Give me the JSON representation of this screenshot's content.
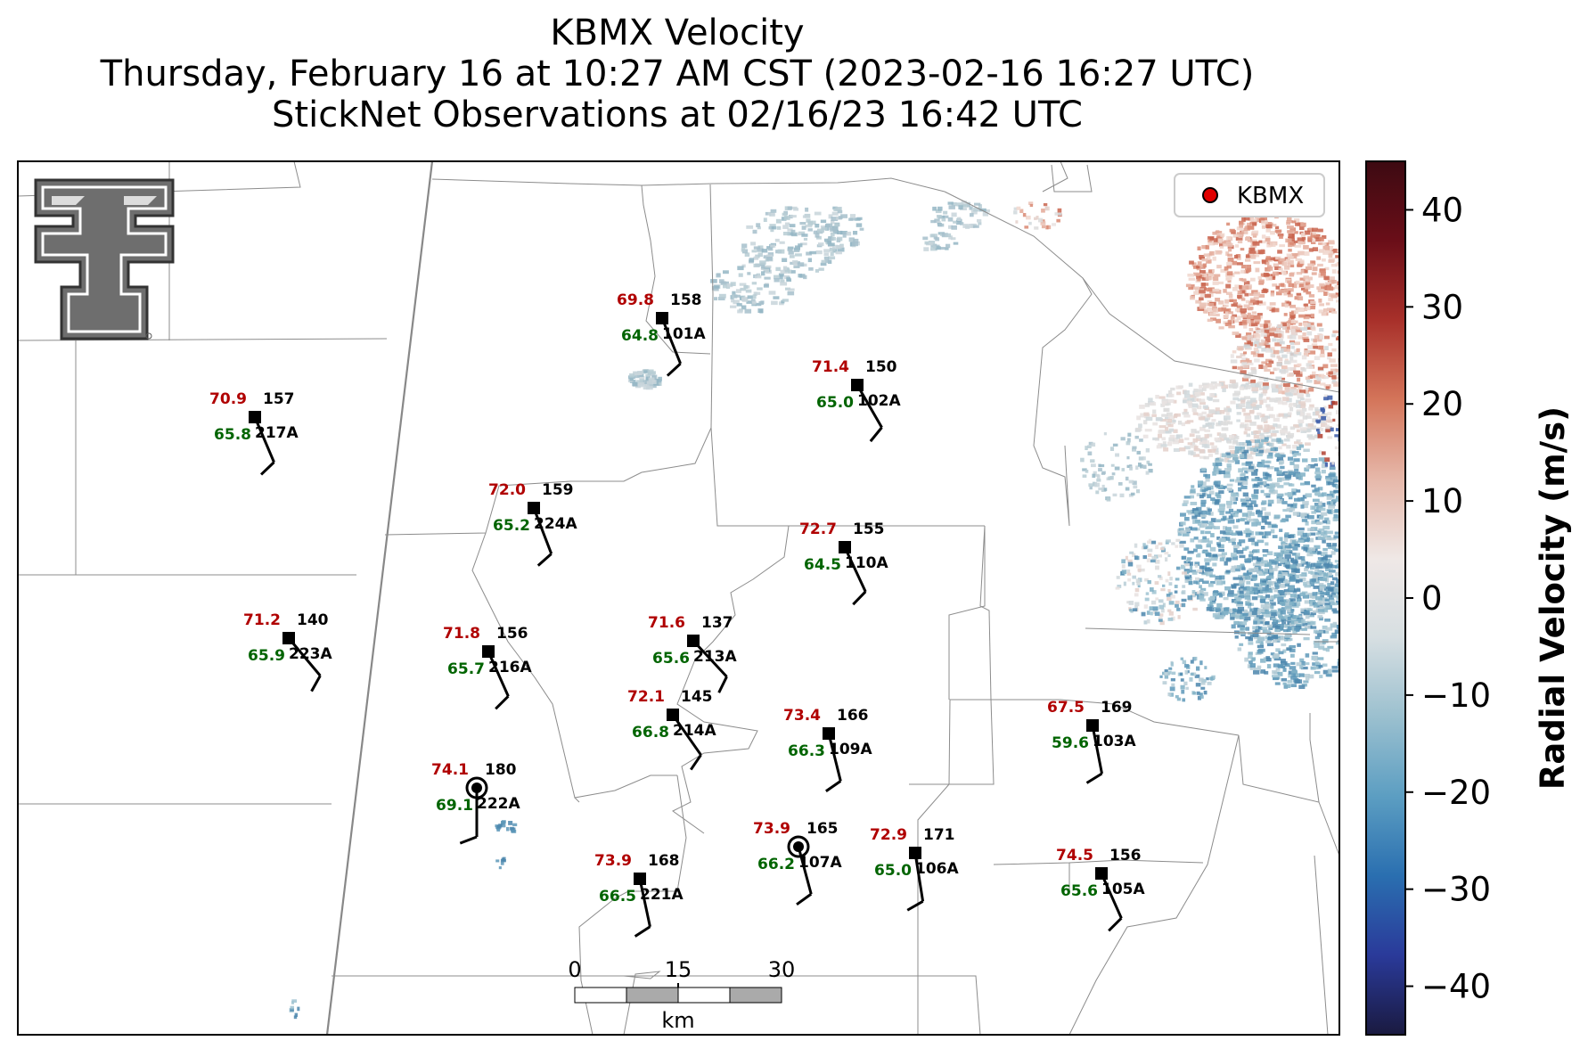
{
  "title": {
    "line1": "KBMX Velocity",
    "line2": "Thursday, February 16 at 10:27 AM CST (2023-02-16 16:27 UTC)",
    "line3": "StickNet Observations at 02/16/23 16:42 UTC"
  },
  "legend": {
    "label": "KBMX",
    "marker_color": "#e00000"
  },
  "colorbar": {
    "label": "Radial Velocity (m/s)",
    "min": -45,
    "max": 45,
    "ticks": [
      "40",
      "30",
      "20",
      "10",
      "0",
      "−10",
      "−20",
      "−30",
      "−40"
    ],
    "tick_values": [
      40,
      30,
      20,
      10,
      0,
      -10,
      -20,
      -30,
      -40
    ],
    "colors": [
      "#1a1a40",
      "#2a3a9a",
      "#2a6fb0",
      "#5c9ec2",
      "#9bc0cf",
      "#d7dfe2",
      "#efe8e6",
      "#e6b8aa",
      "#d4755a",
      "#a8302a",
      "#6a0e18",
      "#3d0a12"
    ]
  },
  "scale_bar": {
    "ticks": [
      "0",
      "15",
      "30"
    ],
    "unit": "km"
  },
  "logo": {
    "name": "texas-tech-double-t-logo"
  },
  "stations": [
    {
      "id": "101A",
      "temp": "69.8",
      "dew": "64.8",
      "dir": "158",
      "marker": "square"
    },
    {
      "id": "102A",
      "temp": "71.4",
      "dew": "65.0",
      "dir": "150",
      "marker": "square"
    },
    {
      "id": "217A",
      "temp": "70.9",
      "dew": "65.8",
      "dir": "157",
      "marker": "square"
    },
    {
      "id": "224A",
      "temp": "72.0",
      "dew": "65.2",
      "dir": "159",
      "marker": "square"
    },
    {
      "id": "110A",
      "temp": "72.7",
      "dew": "64.5",
      "dir": "155",
      "marker": "square"
    },
    {
      "id": "223A",
      "temp": "71.2",
      "dew": "65.9",
      "dir": "140",
      "marker": "square"
    },
    {
      "id": "216A",
      "temp": "71.8",
      "dew": "65.7",
      "dir": "156",
      "marker": "square"
    },
    {
      "id": "213A",
      "temp": "71.6",
      "dew": "65.6",
      "dir": "137",
      "marker": "square"
    },
    {
      "id": "214A",
      "temp": "72.1",
      "dew": "66.8",
      "dir": "145",
      "marker": "square"
    },
    {
      "id": "109A",
      "temp": "73.4",
      "dew": "66.3",
      "dir": "166",
      "marker": "square"
    },
    {
      "id": "103A",
      "temp": "67.5",
      "dew": "59.6",
      "dir": "169",
      "marker": "square"
    },
    {
      "id": "222A",
      "temp": "74.1",
      "dew": "69.1",
      "dir": "180",
      "marker": "circle"
    },
    {
      "id": "107A",
      "temp": "73.9",
      "dew": "66.2",
      "dir": "165",
      "marker": "circle"
    },
    {
      "id": "106A",
      "temp": "72.9",
      "dew": "65.0",
      "dir": "171",
      "marker": "square"
    },
    {
      "id": "221A",
      "temp": "73.9",
      "dew": "66.5",
      "dir": "168",
      "marker": "square"
    },
    {
      "id": "105A",
      "temp": "74.5",
      "dew": "65.6",
      "dir": "156",
      "marker": "square"
    }
  ]
}
